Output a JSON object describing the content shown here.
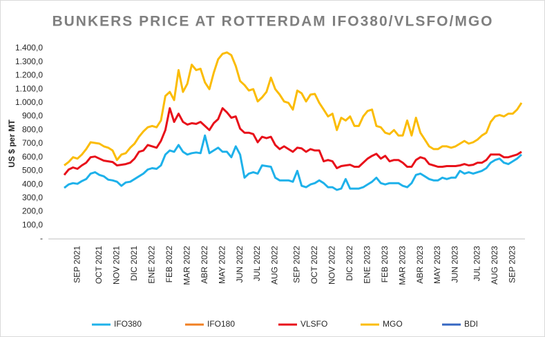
{
  "chart_data": {
    "type": "line",
    "title": "BUNKERS PRICE AT ROTTERDAM  IFO380/VLSFO/MGO",
    "y_label": "US $ per MT",
    "ylim": [
      0,
      1400
    ],
    "yticks": [
      {
        "value": 0,
        "label": "-"
      },
      {
        "value": 100,
        "label": "100,0"
      },
      {
        "value": 200,
        "label": "200,0"
      },
      {
        "value": 300,
        "label": "300,0"
      },
      {
        "value": 400,
        "label": "400,0"
      },
      {
        "value": 500,
        "label": "500,0"
      },
      {
        "value": 600,
        "label": "600,0"
      },
      {
        "value": 700,
        "label": "700,0"
      },
      {
        "value": 800,
        "label": "800,0"
      },
      {
        "value": 900,
        "label": "900,0"
      },
      {
        "value": 1000,
        "label": "1.000,0"
      },
      {
        "value": 1100,
        "label": "1.100,0"
      },
      {
        "value": 1200,
        "label": "1.200,0"
      },
      {
        "value": 1300,
        "label": "1.300,0"
      },
      {
        "value": 1400,
        "label": "1.400,0"
      }
    ],
    "grid": false,
    "legend": "bottom",
    "categories": [
      null,
      null,
      null,
      "SEP 2021",
      null,
      null,
      null,
      null,
      "OCT 2021",
      null,
      null,
      null,
      "NOV 2021",
      null,
      null,
      null,
      "DIC 2021",
      null,
      null,
      null,
      "ENE 2022",
      null,
      null,
      null,
      "FEB 2022",
      null,
      null,
      null,
      "MAR 2022",
      null,
      null,
      null,
      "ABR 2022",
      null,
      null,
      null,
      "MAY 2022",
      null,
      null,
      null,
      "JUN 2022",
      null,
      null,
      null,
      "JUL 2022",
      null,
      null,
      null,
      "AUG 2022",
      null,
      null,
      null,
      null,
      "SEP 2022",
      null,
      null,
      null,
      "OCT 2022",
      null,
      null,
      null,
      "NOV 2022",
      null,
      null,
      null,
      "DIC 2022",
      null,
      null,
      null,
      "ENE 2023",
      null,
      null,
      null,
      "FEB 2023",
      null,
      null,
      null,
      "MAR 2023",
      null,
      null,
      null,
      "ABR 2023",
      null,
      null,
      null,
      "MAY 2023",
      null,
      null,
      null,
      "JUN 2023",
      null,
      null,
      null,
      null,
      "JUL 2023",
      null,
      null,
      null,
      "AUG 2023",
      null,
      null,
      null,
      "SEP 2023",
      null,
      null
    ],
    "series": [
      {
        "name": "IFO380",
        "color": "#1eb1ea",
        "values": [
          375,
          400,
          410,
          405,
          425,
          440,
          480,
          490,
          470,
          460,
          435,
          430,
          420,
          390,
          415,
          420,
          440,
          460,
          480,
          510,
          520,
          515,
          540,
          620,
          650,
          640,
          690,
          640,
          620,
          630,
          635,
          630,
          760,
          630,
          650,
          670,
          640,
          640,
          600,
          680,
          620,
          450,
          480,
          490,
          480,
          540,
          535,
          530,
          450,
          430,
          430,
          430,
          420,
          500,
          390,
          380,
          400,
          410,
          430,
          410,
          380,
          380,
          360,
          370,
          440,
          370,
          370,
          370,
          380,
          400,
          420,
          450,
          410,
          400,
          410,
          410,
          410,
          390,
          380,
          410,
          470,
          480,
          460,
          440,
          430,
          430,
          450,
          440,
          450,
          450,
          500,
          480,
          490,
          480,
          490,
          500,
          520,
          560,
          580,
          590,
          560,
          550,
          570,
          590,
          620
        ]
      },
      {
        "name": "IFO180",
        "color": "#f07f22",
        "values": [
          null,
          null,
          null,
          null,
          null,
          null,
          null,
          null,
          null,
          null,
          null,
          null,
          null,
          null,
          null,
          null,
          null,
          null,
          null,
          null,
          null,
          null,
          null,
          null,
          null,
          null,
          null,
          null,
          null,
          null,
          null,
          null,
          null,
          null,
          null,
          null,
          null,
          null,
          null,
          null,
          null,
          null,
          null,
          null,
          null,
          null,
          null,
          null,
          null,
          null,
          null,
          null,
          null,
          null,
          null,
          null,
          null,
          null,
          null,
          null,
          null,
          null,
          null,
          null,
          null,
          null,
          null,
          null,
          null,
          null,
          null,
          null,
          null,
          null,
          null,
          null,
          null,
          null,
          null,
          null,
          null,
          null,
          null,
          null,
          null,
          null,
          null,
          null,
          null,
          null,
          null,
          null,
          null,
          null,
          null,
          null,
          null,
          null,
          null,
          null,
          null,
          null,
          null,
          null,
          null
        ]
      },
      {
        "name": "VLSFO",
        "color": "#e8101a",
        "values": [
          470,
          510,
          525,
          515,
          540,
          560,
          600,
          605,
          590,
          575,
          570,
          565,
          540,
          545,
          550,
          560,
          590,
          640,
          650,
          690,
          680,
          670,
          720,
          800,
          960,
          860,
          920,
          860,
          840,
          850,
          845,
          860,
          830,
          800,
          850,
          880,
          960,
          930,
          890,
          900,
          810,
          780,
          780,
          770,
          710,
          750,
          740,
          750,
          690,
          660,
          680,
          660,
          640,
          670,
          665,
          640,
          660,
          650,
          650,
          570,
          580,
          570,
          520,
          535,
          540,
          545,
          530,
          530,
          560,
          590,
          610,
          625,
          590,
          610,
          570,
          580,
          580,
          560,
          530,
          530,
          580,
          600,
          590,
          550,
          540,
          530,
          530,
          535,
          535,
          535,
          540,
          550,
          540,
          545,
          560,
          560,
          580,
          620,
          620,
          620,
          600,
          600,
          610,
          620,
          640
        ]
      },
      {
        "name": "MGO",
        "color": "#fbbc05",
        "values": [
          540,
          565,
          600,
          590,
          620,
          660,
          710,
          705,
          700,
          680,
          670,
          650,
          580,
          620,
          630,
          670,
          700,
          750,
          790,
          820,
          830,
          820,
          870,
          1050,
          1080,
          1020,
          1240,
          1080,
          1140,
          1280,
          1240,
          1250,
          1150,
          1100,
          1220,
          1320,
          1360,
          1370,
          1350,
          1270,
          1160,
          1130,
          1090,
          1100,
          1010,
          1040,
          1080,
          1185,
          1100,
          1060,
          1010,
          1000,
          950,
          1090,
          1070,
          1010,
          1060,
          1065,
          1000,
          950,
          900,
          920,
          800,
          890,
          870,
          900,
          830,
          830,
          900,
          940,
          950,
          830,
          820,
          780,
          770,
          800,
          760,
          760,
          870,
          760,
          890,
          780,
          730,
          680,
          660,
          660,
          680,
          680,
          670,
          680,
          700,
          720,
          700,
          710,
          730,
          760,
          780,
          860,
          900,
          910,
          900,
          920,
          920,
          950,
          1000
        ]
      },
      {
        "name": "BDI",
        "color": "#3466c2",
        "values": [
          null,
          null,
          null,
          null,
          null,
          null,
          null,
          null,
          null,
          null,
          null,
          null,
          null,
          null,
          null,
          null,
          null,
          null,
          null,
          null,
          null,
          null,
          null,
          null,
          null,
          null,
          null,
          null,
          null,
          null,
          null,
          null,
          null,
          null,
          null,
          null,
          null,
          null,
          null,
          null,
          null,
          null,
          null,
          null,
          null,
          null,
          null,
          null,
          null,
          null,
          null,
          null,
          null,
          null,
          null,
          null,
          null,
          null,
          null,
          null,
          null,
          null,
          null,
          null,
          null,
          null,
          null,
          null,
          null,
          null,
          null,
          null,
          null,
          null,
          null,
          null,
          null,
          null,
          null,
          null,
          null,
          null,
          null,
          null,
          null,
          null,
          null,
          null,
          null,
          null,
          null,
          null,
          null,
          null,
          null,
          null,
          null,
          null,
          null,
          null,
          null,
          null,
          null,
          null,
          null
        ]
      }
    ]
  }
}
